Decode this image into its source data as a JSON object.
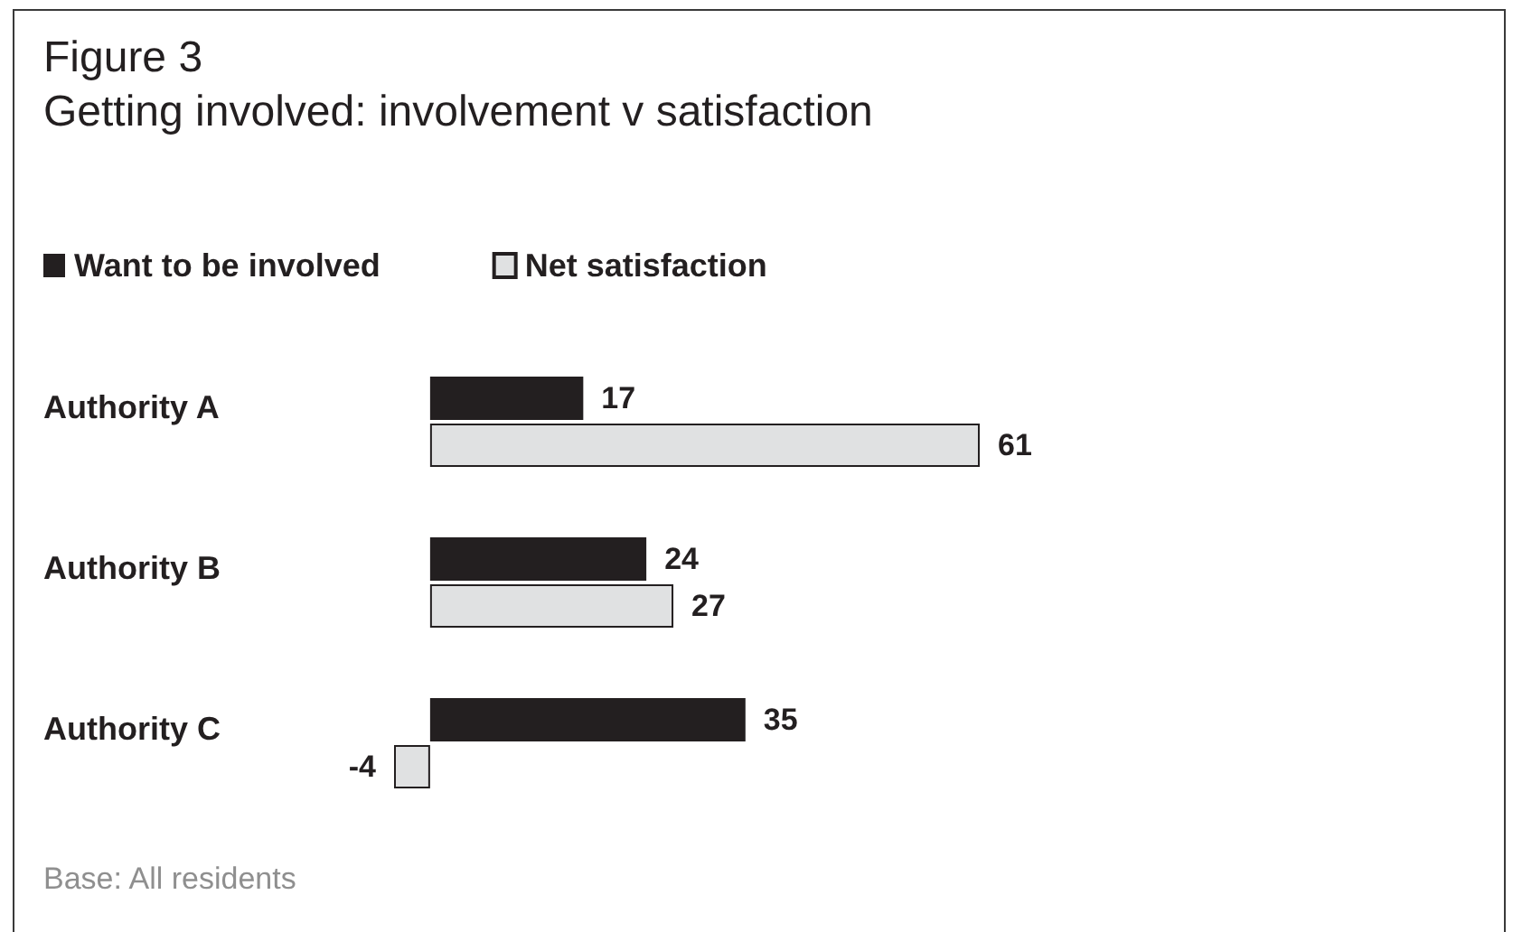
{
  "chart_data": {
    "type": "bar",
    "orientation": "horizontal",
    "title": "Figure 3",
    "subtitle": "Getting involved: involvement v satisfaction",
    "categories": [
      "Authority A",
      "Authority B",
      "Authority C"
    ],
    "series": [
      {
        "name": "Want to be involved",
        "color": "#231f20",
        "values": [
          17,
          24,
          35
        ]
      },
      {
        "name": "Net satisfaction",
        "color": "#e0e1e2",
        "values": [
          61,
          27,
          -4
        ]
      }
    ],
    "xlim": [
      -4,
      61
    ],
    "data_labels": true,
    "legend": "top left",
    "tick_labels": "y",
    "annotations": [
      "Base: All residents"
    ]
  }
}
